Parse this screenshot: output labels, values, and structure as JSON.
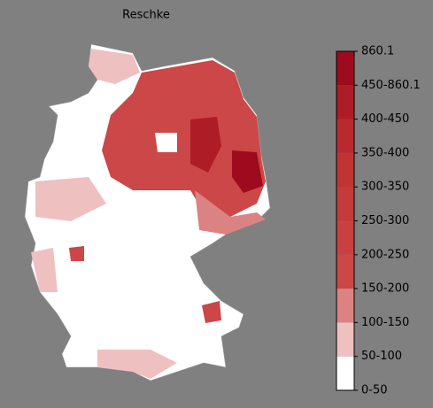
{
  "title": "Reschke",
  "legend": {
    "ticks": [
      "0-50",
      "50-100",
      "100-150",
      "150-200",
      "200-250",
      "250-300",
      "300-350",
      "350-400",
      "400-450",
      "450-860.1",
      "860.1"
    ],
    "colors": [
      "#ffffff",
      "#efc0c0",
      "#db8282",
      "#cc4747",
      "#c94040",
      "#c53a3a",
      "#c03434",
      "#b82a2e",
      "#ae1c26",
      "#9e0b1e"
    ]
  }
}
